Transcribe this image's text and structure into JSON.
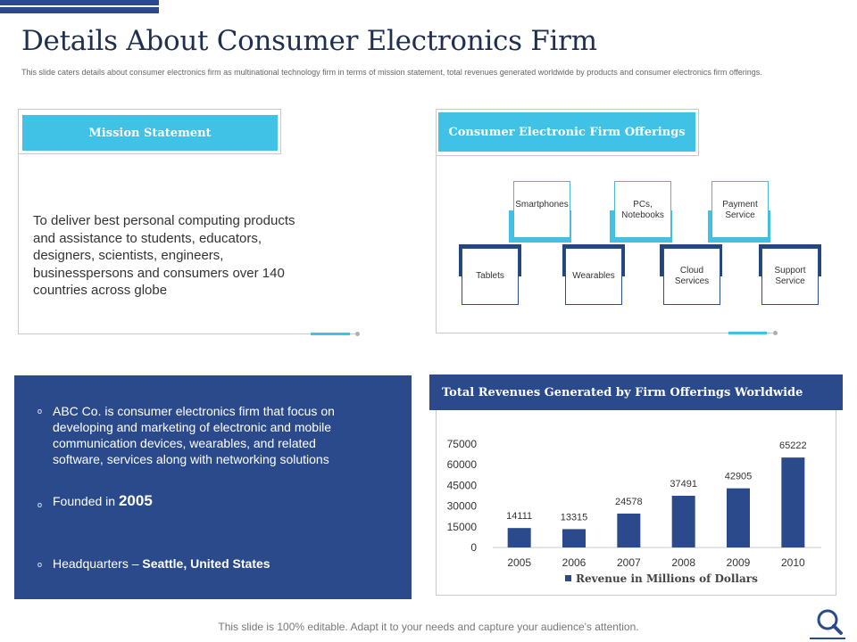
{
  "title": "Details About Consumer Electronics Firm",
  "subtitle": "This slide caters details about consumer electronics firm as multinational  technology firm in terms of mission statement, total revenues generated worldwide by products and consumer electronics firm offerings.",
  "mission": {
    "header": "Mission Statement",
    "text": "To deliver best personal computing products and assistance to students, educators, designers, scientists, engineers, businesspersons and consumers over 140 countries across globe"
  },
  "offerings": {
    "header": "Consumer Electronic Firm Offerings",
    "top": [
      "Smartphones",
      "PCs, Notebooks",
      "Payment Service"
    ],
    "bottom": [
      "Tablets",
      "Wearables",
      "Cloud Services",
      "Support Service"
    ]
  },
  "info": {
    "bullet_mark": "o",
    "b1": "ABC Co. is consumer electronics firm that focus on developing and marketing of electronic and mobile communication devices, wearables, and related software, services along with networking solutions",
    "b2_label": "Founded in ",
    "b2_value": "2005",
    "b3_label": "Headquarters – ",
    "b3_value": "Seattle, United States"
  },
  "chart_title": "Total Revenues Generated by Firm Offerings Worldwide",
  "chart_data": {
    "type": "bar",
    "title": "Total Revenues Generated by Firm Offerings Worldwide",
    "categories": [
      "2005",
      "2006",
      "2007",
      "2008",
      "2009",
      "2010"
    ],
    "series": [
      {
        "name": "Revenue in Millions of Dollars",
        "values": [
          14111,
          13315,
          24578,
          37491,
          42905,
          65222
        ]
      }
    ],
    "yticks": [
      0,
      15000,
      30000,
      45000,
      60000,
      75000
    ],
    "ylim": [
      0,
      75000
    ],
    "xlabel": "",
    "ylabel": "",
    "legend": "bottom",
    "color": "#2a4a8c"
  },
  "footer": "This slide is 100% editable. Adapt it to your needs and capture your audience's attention.",
  "colors": {
    "navy": "#2a4a8c",
    "cyan": "#3fc2e6"
  }
}
